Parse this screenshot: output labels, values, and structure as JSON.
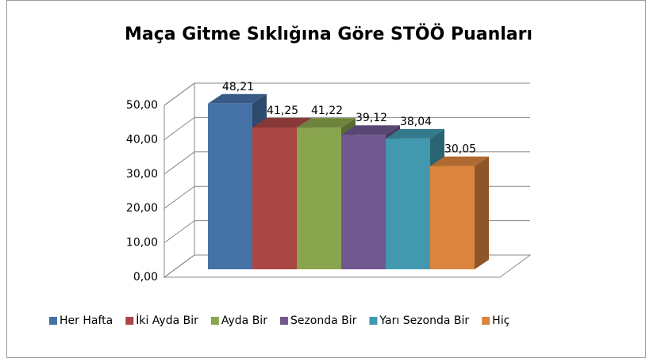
{
  "chart_data": {
    "type": "bar3d",
    "title": "Maça Gitme Sıklığına Göre STÖÖ Puanları",
    "series": [
      {
        "name": "Her Hafta",
        "color": "#4572a7",
        "values": [
          48.21
        ],
        "value_labels": [
          "48,21"
        ]
      },
      {
        "name": "İki Ayda Bir",
        "color": "#aa4643",
        "values": [
          41.25
        ],
        "value_labels": [
          "41,25"
        ]
      },
      {
        "name": "Ayda Bir",
        "color": "#89a54e",
        "values": [
          41.22
        ],
        "value_labels": [
          "41,22"
        ]
      },
      {
        "name": "Sezonda Bir",
        "color": "#71588f",
        "values": [
          39.12
        ],
        "value_labels": [
          "39,12"
        ]
      },
      {
        "name": "Yarı Sezonda Bir",
        "color": "#4198af",
        "values": [
          38.04
        ],
        "value_labels": [
          "38,04"
        ]
      },
      {
        "name": "Hiç",
        "color": "#db843d",
        "values": [
          30.05
        ],
        "value_labels": [
          "30,05"
        ]
      }
    ],
    "ylim": [
      0,
      50
    ],
    "yticks": [
      {
        "value": 0,
        "label": "0,00"
      },
      {
        "value": 10,
        "label": "10,00"
      },
      {
        "value": 20,
        "label": "20,00"
      },
      {
        "value": 30,
        "label": "30,00"
      },
      {
        "value": 40,
        "label": "40,00"
      },
      {
        "value": 50,
        "label": "50,00"
      }
    ],
    "grid": true,
    "legend": "bottom"
  }
}
